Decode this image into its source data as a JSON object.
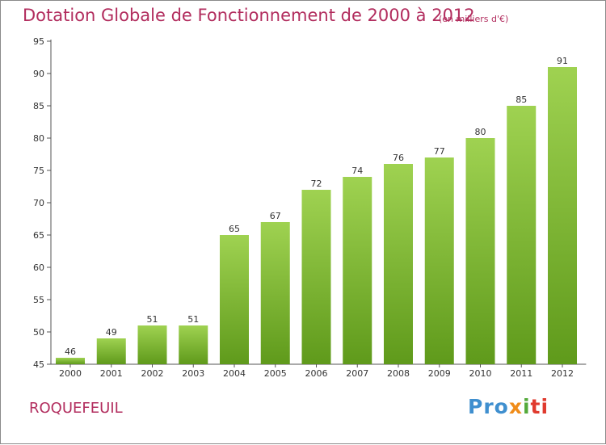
{
  "chart_data": {
    "type": "bar",
    "title": "Dotation Globale de Fonctionnement de 2000 à 2012",
    "subtitle": "(en milliers d'€)",
    "categories": [
      "2000",
      "2001",
      "2002",
      "2003",
      "2004",
      "2005",
      "2006",
      "2007",
      "2008",
      "2009",
      "2010",
      "2011",
      "2012"
    ],
    "values": [
      46,
      49,
      51,
      51,
      65,
      67,
      72,
      74,
      76,
      77,
      80,
      85,
      91
    ],
    "ylim": [
      45,
      95
    ],
    "yticks": [
      45,
      50,
      55,
      60,
      65,
      70,
      75,
      80,
      85,
      90,
      95
    ],
    "grid": false,
    "bar_color_top": "#9fd251",
    "bar_color_bottom": "#5f9a1b"
  },
  "footer": {
    "town": "ROQUEFEUIL",
    "logo_parts": [
      "Pro",
      "x",
      "i",
      "ti"
    ]
  },
  "colors": {
    "title": "#b22d5e",
    "axis": "#555555"
  }
}
